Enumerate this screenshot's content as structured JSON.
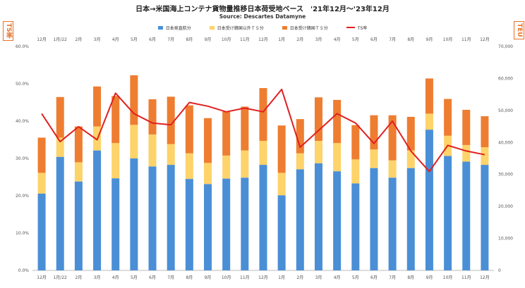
{
  "title": "日本→米国海上コンテナ貨物量推移日本荷受地ベース　'21年12月～'23年12月",
  "subtitle": "Source: Descartes Datamyne",
  "left_unit_label": "TS率",
  "right_unit_label": "TEU",
  "chart_data": {
    "type": "bar",
    "stacked": true,
    "categories": [
      "12月",
      "1月/22",
      "2月",
      "3月",
      "4月",
      "5月",
      "6月",
      "7月",
      "8月",
      "9月",
      "10月",
      "11月",
      "12月",
      "1月",
      "2月",
      "3月",
      "4月",
      "5月",
      "6月",
      "7月",
      "8月",
      "9月",
      "10月",
      "11月",
      "12月"
    ],
    "series": [
      {
        "name": "日本発直航分",
        "color": "#4a8fd6",
        "axis": "right",
        "values": [
          24000,
          35500,
          27800,
          37500,
          28800,
          35000,
          32500,
          33000,
          28600,
          27000,
          28700,
          29000,
          33000,
          23500,
          31600,
          33500,
          31000,
          27200,
          32000,
          29000,
          32000,
          44000,
          35800,
          34000,
          33000
        ]
      },
      {
        "name": "日本受け韓国以外ＴＳ分",
        "color": "#fdd36a",
        "axis": "right",
        "values": [
          6500,
          6000,
          6000,
          7500,
          11000,
          10500,
          10000,
          6500,
          8000,
          6600,
          7200,
          8500,
          7500,
          7000,
          5000,
          7000,
          8800,
          7500,
          5800,
          5400,
          5500,
          5000,
          6300,
          5200,
          5500
        ]
      },
      {
        "name": "日本受け韓国ＴＳ分",
        "color": "#ee7d31",
        "axis": "right",
        "values": [
          11000,
          12700,
          11200,
          12500,
          14700,
          15500,
          11000,
          14800,
          15000,
          14000,
          13800,
          13700,
          16500,
          14800,
          10700,
          13600,
          13500,
          10700,
          10700,
          14100,
          10500,
          11000,
          11500,
          11000,
          9700
        ]
      },
      {
        "name": "TS率",
        "color": "#e02020",
        "type": "line",
        "axis": "left",
        "values": [
          42.0,
          34.5,
          38.5,
          35.0,
          47.5,
          42.0,
          39.5,
          39.0,
          45.0,
          44.0,
          42.5,
          43.5,
          42.5,
          48.5,
          33.0,
          37.5,
          42.0,
          39.5,
          34.0,
          40.0,
          32.0,
          26.5,
          33.5,
          32.0,
          31.0
        ]
      }
    ],
    "y_left": {
      "ticks": [
        "0.0%",
        "10.0%",
        "20.0%",
        "30.0%",
        "40.0%",
        "50.0%",
        "60.0%"
      ],
      "range": [
        0,
        60
      ]
    },
    "y_right": {
      "ticks": [
        "0",
        "10,000",
        "20,000",
        "30,000",
        "40,000",
        "50,000",
        "60,000",
        "70,000"
      ],
      "range": [
        0,
        70000
      ]
    },
    "legend_position": "top",
    "grid": false
  }
}
